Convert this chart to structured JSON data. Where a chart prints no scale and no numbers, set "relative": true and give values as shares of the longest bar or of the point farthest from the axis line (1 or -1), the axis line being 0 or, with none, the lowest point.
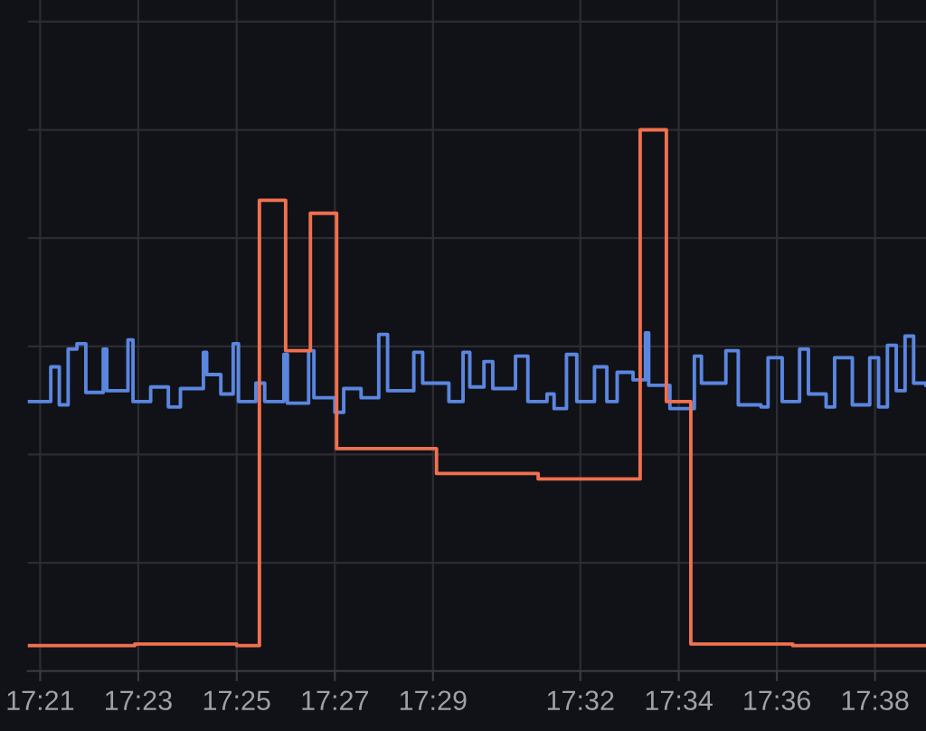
{
  "chart_data": {
    "type": "step",
    "relative": true,
    "grid": true,
    "xlim": [
      17.3458,
      17.6506
    ],
    "xticks": [
      {
        "value": 17.35,
        "label": "17:21"
      },
      {
        "value": 17.3833,
        "label": "17:23"
      },
      {
        "value": 17.4167,
        "label": "17:25"
      },
      {
        "value": 17.45,
        "label": "17:27"
      },
      {
        "value": 17.4833,
        "label": "17:29"
      },
      {
        "value": 17.5333,
        "label": "17:32"
      },
      {
        "value": 17.5667,
        "label": "17:34"
      },
      {
        "value": 17.6,
        "label": "17:36"
      },
      {
        "value": 17.6333,
        "label": "17:38"
      }
    ],
    "series": [
      {
        "color": "#5a86e0",
        "x": [
          17.3458,
          17.3536,
          17.3565,
          17.3595,
          17.3625,
          17.3655,
          17.3714,
          17.3726,
          17.3798,
          17.3815,
          17.3875,
          17.3935,
          17.3976,
          17.4054,
          17.4065,
          17.4113,
          17.4155,
          17.4173,
          17.4232,
          17.4262,
          17.4327,
          17.4339,
          17.4411,
          17.4429,
          17.45,
          17.453,
          17.4589,
          17.4649,
          17.4679,
          17.4768,
          17.4798,
          17.4887,
          17.4935,
          17.4958,
          17.5006,
          17.5036,
          17.5113,
          17.5155,
          17.522,
          17.5244,
          17.5286,
          17.5321,
          17.5381,
          17.5423,
          17.5458,
          17.5512,
          17.5554,
          17.5565,
          17.5637,
          17.572,
          17.5744,
          17.5827,
          17.5869,
          17.5946,
          17.597,
          17.6018,
          17.6077,
          17.6107,
          17.6167,
          17.6196,
          17.6256,
          17.6315,
          17.6345,
          17.6375,
          17.6405,
          17.6435,
          17.6464,
          17.6506
        ],
        "values": [
          0.498,
          0.562,
          0.492,
          0.595,
          0.605,
          0.515,
          0.595,
          0.518,
          0.612,
          0.498,
          0.525,
          0.488,
          0.522,
          0.589,
          0.548,
          0.512,
          0.605,
          0.498,
          0.532,
          0.498,
          0.585,
          0.495,
          0.592,
          0.505,
          0.478,
          0.522,
          0.505,
          0.622,
          0.518,
          0.589,
          0.532,
          0.498,
          0.589,
          0.525,
          0.572,
          0.522,
          0.582,
          0.498,
          0.512,
          0.485,
          0.585,
          0.498,
          0.562,
          0.498,
          0.552,
          0.538,
          0.625,
          0.528,
          0.485,
          0.582,
          0.532,
          0.592,
          0.492,
          0.488,
          0.579,
          0.498,
          0.595,
          0.512,
          0.488,
          0.579,
          0.492,
          0.579,
          0.488,
          0.602,
          0.518,
          0.619,
          0.532,
          0.528
        ]
      },
      {
        "color": "#f0704f",
        "x": [
          17.3458,
          17.3821,
          17.4167,
          17.4244,
          17.4333,
          17.4417,
          17.4506,
          17.4845,
          17.519,
          17.5536,
          17.5625,
          17.5708,
          17.6054,
          17.6506
        ],
        "values": [
          0.047,
          0.05,
          0.047,
          0.87,
          0.592,
          0.846,
          0.411,
          0.365,
          0.355,
          1,
          0.498,
          0.05,
          0.047,
          0.047
        ]
      }
    ]
  }
}
